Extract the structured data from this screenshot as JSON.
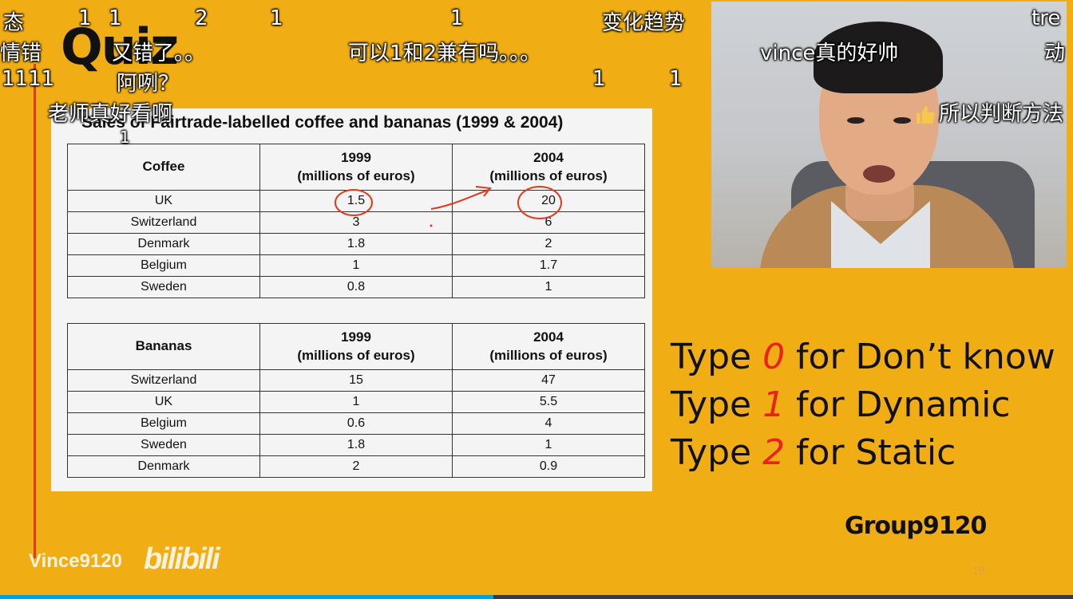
{
  "slide": {
    "title": "Quiz",
    "table_caption": "Sales of Fairtrade-labelled coffee and bananas (1999 & 2004)",
    "coffee_table": {
      "header": [
        "Coffee",
        "1999\n(millions of euros)",
        "2004\n(millions of euros)"
      ],
      "rows": [
        [
          "UK",
          "1.5",
          "20"
        ],
        [
          "Switzerland",
          "3",
          "6"
        ],
        [
          "Denmark",
          "1.8",
          "2"
        ],
        [
          "Belgium",
          "1",
          "1.7"
        ],
        [
          "Sweden",
          "0.8",
          "1"
        ]
      ]
    },
    "bananas_table": {
      "header": [
        "Bananas",
        "1999\n(millions of euros)",
        "2004\n(millions of euros)"
      ],
      "rows": [
        [
          "Switzerland",
          "15",
          "47"
        ],
        [
          "UK",
          "1",
          "5.5"
        ],
        [
          "Belgium",
          "0.6",
          "4"
        ],
        [
          "Sweden",
          "1.8",
          "1"
        ],
        [
          "Denmark",
          "2",
          "0.9"
        ]
      ]
    },
    "type_lines": [
      {
        "prefix": "Type ",
        "num": "0",
        "suffix": " for Don’t know"
      },
      {
        "prefix": "Type ",
        "num": "1",
        "suffix": " for Dynamic"
      },
      {
        "prefix": "Type ",
        "num": "2",
        "suffix": " for Static"
      }
    ],
    "group": "Group9120",
    "page_number": "18"
  },
  "watermark": {
    "uploader": "Vince9120",
    "logo": "bilibili"
  },
  "playback": {
    "progress_fraction": 0.46
  },
  "danmaku": [
    {
      "text": "态"
    },
    {
      "text": "1"
    },
    {
      "text": "1"
    },
    {
      "text": "2"
    },
    {
      "text": "1"
    },
    {
      "text": "1"
    },
    {
      "text": "变化趋势"
    },
    {
      "text": "tre"
    },
    {
      "text": "情错"
    },
    {
      "text": "又错了。。"
    },
    {
      "text": "可以1和2兼有吗。。。"
    },
    {
      "text": "vince真的好帅"
    },
    {
      "text": "动"
    },
    {
      "text": "1111"
    },
    {
      "text": "阿咧？"
    },
    {
      "text": "1"
    },
    {
      "text": "1"
    },
    {
      "text": "老师真好看啊"
    },
    {
      "text": "1"
    },
    {
      "text": "所以判断方法"
    }
  ],
  "colors": {
    "background": "#f0ad14",
    "accent_red": "#e8231c",
    "annotation_red": "#e0391b",
    "progress": "#00a1d6"
  }
}
